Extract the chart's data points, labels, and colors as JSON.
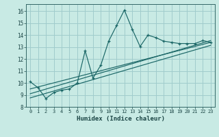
{
  "title": "",
  "xlabel": "Humidex (Indice chaleur)",
  "bg_color": "#c8eae4",
  "grid_color": "#a0cccc",
  "line_color": "#1a6666",
  "xlim": [
    -0.5,
    23.5
  ],
  "ylim": [
    8.0,
    16.6
  ],
  "xticks": [
    0,
    1,
    2,
    3,
    4,
    5,
    6,
    7,
    8,
    9,
    10,
    11,
    12,
    13,
    14,
    15,
    16,
    17,
    18,
    19,
    20,
    21,
    22,
    23
  ],
  "yticks": [
    8,
    9,
    10,
    11,
    12,
    13,
    14,
    15,
    16
  ],
  "main_x": [
    0,
    1,
    2,
    3,
    4,
    5,
    6,
    7,
    8,
    9,
    10,
    11,
    12,
    13,
    14,
    15,
    16,
    17,
    18,
    19,
    20,
    21,
    22,
    23
  ],
  "main_y": [
    10.1,
    9.6,
    8.7,
    9.2,
    9.4,
    9.5,
    10.0,
    12.7,
    10.4,
    11.5,
    13.5,
    14.8,
    16.1,
    14.5,
    13.05,
    14.0,
    13.8,
    13.5,
    13.4,
    13.3,
    13.3,
    13.3,
    13.55,
    13.4
  ],
  "trend1_x": [
    0,
    23
  ],
  "trend1_y": [
    9.5,
    13.4
  ],
  "trend2_x": [
    0,
    23
  ],
  "trend2_y": [
    9.1,
    13.55
  ],
  "trend3_x": [
    0,
    23
  ],
  "trend3_y": [
    8.75,
    13.15
  ]
}
